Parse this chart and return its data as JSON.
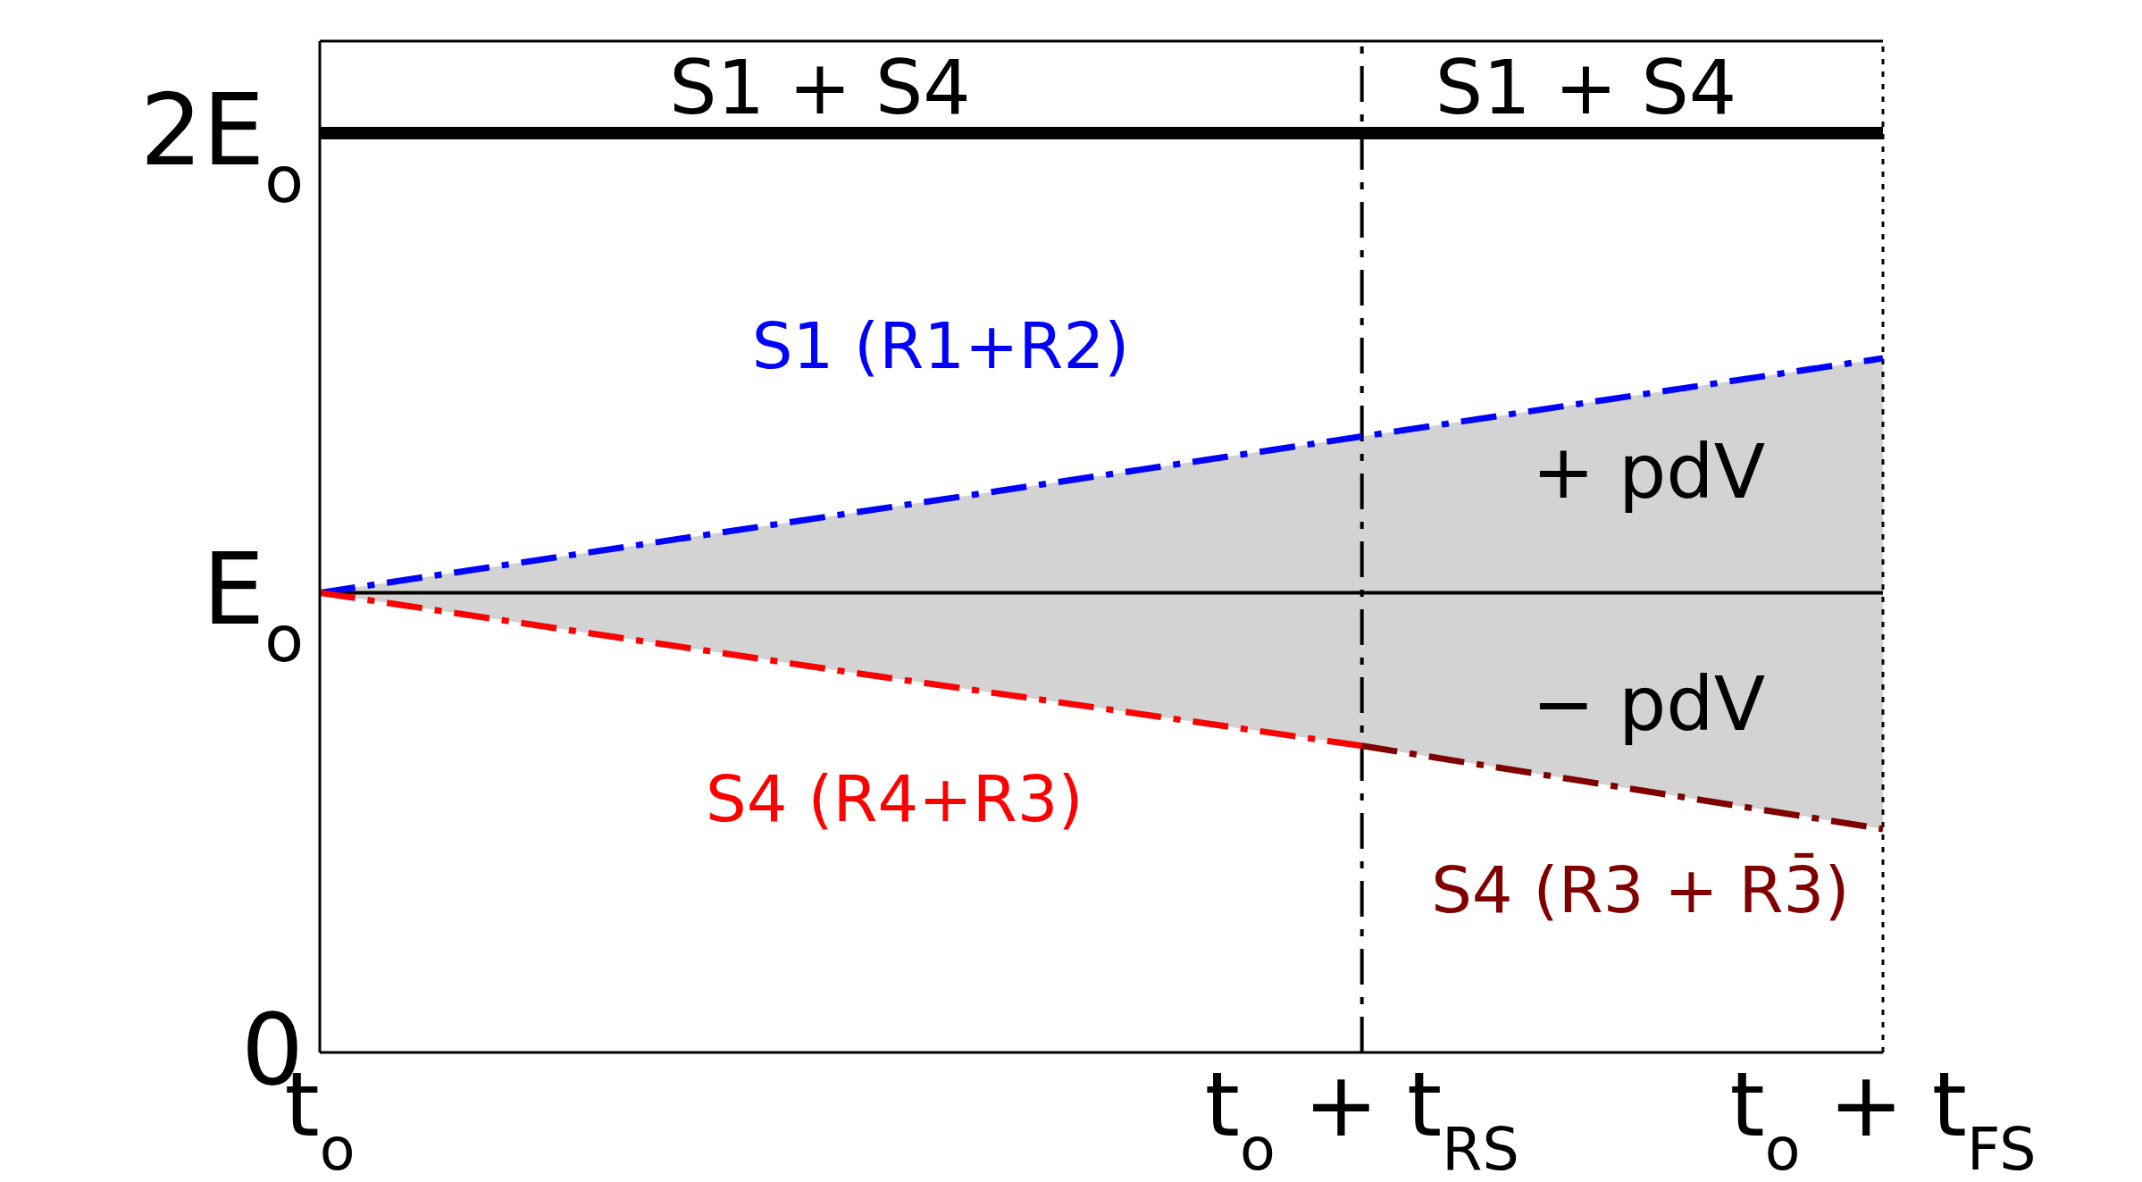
{
  "chart_data": {
    "type": "line",
    "categories": [
      "t$_{o}$",
      null,
      "t$_{o}$ + t$_{RS}$",
      "t$_{o}$ + t$_{FS}$"
    ],
    "ylim": [
      0,
      2.2
    ],
    "yticks": [
      {
        "value": 0,
        "label": "0"
      },
      {
        "value": 1,
        "label": "E$_{o}$"
      },
      {
        "value": 2,
        "label": "2E$_{o}$"
      }
    ],
    "series": [
      {
        "name": "S1 (R1+R2)",
        "color": "#0000ff",
        "values": [
          1,
          1.17,
          1.34,
          1.51
        ],
        "lower": [
          1,
          0.83,
          0.667,
          0.486
        ],
        "upper": [
          1,
          1.17,
          1.34,
          1.51
        ],
        "line_style": "dashed"
      },
      {
        "name": "S4 (R4+R3)",
        "color": "#ff0000",
        "values": [
          1,
          0.83,
          0.667,
          null
        ],
        "line_style": "dashed"
      },
      {
        "name": "S4 (R3 + R3̄)",
        "color": "#800000",
        "values": [
          null,
          null,
          0.667,
          0.486
        ],
        "line_style": "dashed"
      },
      {
        "color": "#000000",
        "values": [
          2,
          2,
          2,
          2
        ],
        "line_style": "solid"
      }
    ],
    "ref_lines": [
      {
        "axis": "y",
        "value": 1,
        "color": "#000000",
        "line_style": "solid"
      },
      {
        "axis": "x",
        "value": "t$_{o}$ + t$_{RS}$",
        "color": "#000000",
        "line_style": "dashed"
      },
      {
        "axis": "x",
        "value": "t$_{o}$ + t$_{FS}$",
        "color": "#000000",
        "line_style": "dotted"
      }
    ],
    "annotations": [
      "S1 + S4",
      "S1 + S4",
      "+ pdV",
      "− pdV"
    ],
    "grid": false,
    "legend": false,
    "marker": "none"
  }
}
